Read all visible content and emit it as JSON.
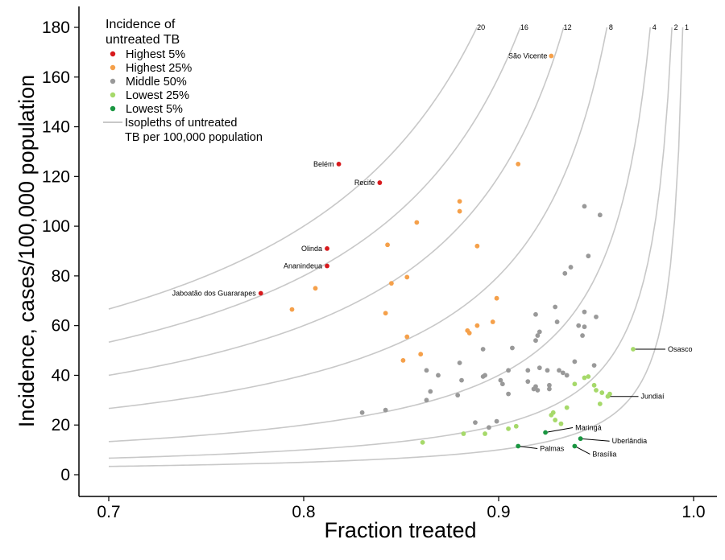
{
  "chart_data": {
    "type": "scatter",
    "title": "",
    "xlabel": "Fraction treated",
    "ylabel": "Incidence, cases/100,000 population",
    "xlim": [
      0.7,
      1.0
    ],
    "ylim": [
      0,
      180
    ],
    "xticks": [
      "0.7",
      "0.8",
      "0.9",
      "1.0"
    ],
    "yticks": [
      "0",
      "20",
      "40",
      "60",
      "80",
      "100",
      "120",
      "140",
      "160",
      "180"
    ],
    "grid": false,
    "legend": {
      "title_line1": "Incidence of",
      "title_line2": "untreated TB",
      "placement": "top-left",
      "items": [
        {
          "label": "Highest 5%",
          "color": "#d7191c"
        },
        {
          "label": "Highest 25%",
          "color": "#f5a04a"
        },
        {
          "label": "Middle 50%",
          "color": "#999999"
        },
        {
          "label": "Lowest 25%",
          "color": "#a6d96a"
        },
        {
          "label": "Lowest 5%",
          "color": "#1a9641"
        }
      ],
      "line_label_1": "Isopleths of untreated",
      "line_label_2": "TB per 100,000 population",
      "line_color": "#c8c8c8"
    },
    "isopleths": [
      20,
      16,
      12,
      8,
      4,
      2,
      1
    ],
    "series": [
      {
        "name": "Highest 5%",
        "color": "#d7191c",
        "points": [
          {
            "x": 0.818,
            "y": 125,
            "label": "Belém"
          },
          {
            "x": 0.839,
            "y": 117.5,
            "label": "Recife"
          },
          {
            "x": 0.812,
            "y": 91,
            "label": "Olinda"
          },
          {
            "x": 0.812,
            "y": 84,
            "label": "Ananindeua"
          },
          {
            "x": 0.778,
            "y": 73,
            "label": "Jaboatão dos Guararapes"
          }
        ]
      },
      {
        "name": "Highest 25%",
        "color": "#f5a04a",
        "points": [
          {
            "x": 0.927,
            "y": 168.5,
            "label": "São Vicente"
          },
          {
            "x": 0.91,
            "y": 125
          },
          {
            "x": 0.88,
            "y": 110
          },
          {
            "x": 0.88,
            "y": 106
          },
          {
            "x": 0.858,
            "y": 101.5
          },
          {
            "x": 0.843,
            "y": 92.5
          },
          {
            "x": 0.889,
            "y": 92
          },
          {
            "x": 0.853,
            "y": 79.5
          },
          {
            "x": 0.845,
            "y": 77
          },
          {
            "x": 0.806,
            "y": 75
          },
          {
            "x": 0.899,
            "y": 71
          },
          {
            "x": 0.794,
            "y": 66.5
          },
          {
            "x": 0.842,
            "y": 65
          },
          {
            "x": 0.897,
            "y": 61.5
          },
          {
            "x": 0.889,
            "y": 60
          },
          {
            "x": 0.884,
            "y": 58
          },
          {
            "x": 0.885,
            "y": 57
          },
          {
            "x": 0.853,
            "y": 55.5
          },
          {
            "x": 0.86,
            "y": 48.5
          },
          {
            "x": 0.851,
            "y": 46
          }
        ]
      },
      {
        "name": "Middle 50%",
        "color": "#999999",
        "points": [
          {
            "x": 0.944,
            "y": 108
          },
          {
            "x": 0.952,
            "y": 104.5
          },
          {
            "x": 0.946,
            "y": 88
          },
          {
            "x": 0.937,
            "y": 83.5
          },
          {
            "x": 0.934,
            "y": 81
          },
          {
            "x": 0.929,
            "y": 67.5
          },
          {
            "x": 0.944,
            "y": 65.5
          },
          {
            "x": 0.919,
            "y": 64.5
          },
          {
            "x": 0.95,
            "y": 63.5
          },
          {
            "x": 0.93,
            "y": 61.5
          },
          {
            "x": 0.941,
            "y": 60
          },
          {
            "x": 0.944,
            "y": 59.5
          },
          {
            "x": 0.921,
            "y": 57.5
          },
          {
            "x": 0.92,
            "y": 56
          },
          {
            "x": 0.943,
            "y": 56
          },
          {
            "x": 0.919,
            "y": 54
          },
          {
            "x": 0.907,
            "y": 51
          },
          {
            "x": 0.892,
            "y": 50.5
          },
          {
            "x": 0.939,
            "y": 45.5
          },
          {
            "x": 0.88,
            "y": 45
          },
          {
            "x": 0.949,
            "y": 44
          },
          {
            "x": 0.921,
            "y": 43
          },
          {
            "x": 0.915,
            "y": 42
          },
          {
            "x": 0.863,
            "y": 42
          },
          {
            "x": 0.905,
            "y": 42
          },
          {
            "x": 0.931,
            "y": 42
          },
          {
            "x": 0.925,
            "y": 42
          },
          {
            "x": 0.933,
            "y": 41
          },
          {
            "x": 0.935,
            "y": 40
          },
          {
            "x": 0.869,
            "y": 40
          },
          {
            "x": 0.893,
            "y": 40
          },
          {
            "x": 0.892,
            "y": 39.5
          },
          {
            "x": 0.901,
            "y": 38
          },
          {
            "x": 0.881,
            "y": 38
          },
          {
            "x": 0.915,
            "y": 37.5
          },
          {
            "x": 0.902,
            "y": 36.5
          },
          {
            "x": 0.926,
            "y": 36
          },
          {
            "x": 0.919,
            "y": 35.5
          },
          {
            "x": 0.918,
            "y": 34.5
          },
          {
            "x": 0.926,
            "y": 34.5
          },
          {
            "x": 0.92,
            "y": 34
          },
          {
            "x": 0.865,
            "y": 33.5
          },
          {
            "x": 0.905,
            "y": 32.5
          },
          {
            "x": 0.879,
            "y": 32
          },
          {
            "x": 0.863,
            "y": 30
          },
          {
            "x": 0.842,
            "y": 26
          },
          {
            "x": 0.83,
            "y": 25
          },
          {
            "x": 0.888,
            "y": 21
          },
          {
            "x": 0.899,
            "y": 21.5
          },
          {
            "x": 0.895,
            "y": 19
          }
        ]
      },
      {
        "name": "Lowest 25%",
        "color": "#a6d96a",
        "points": [
          {
            "x": 0.969,
            "y": 50.5,
            "label": "Osasco"
          },
          {
            "x": 0.946,
            "y": 39.5
          },
          {
            "x": 0.944,
            "y": 39
          },
          {
            "x": 0.939,
            "y": 36.5
          },
          {
            "x": 0.949,
            "y": 36
          },
          {
            "x": 0.95,
            "y": 34
          },
          {
            "x": 0.953,
            "y": 33
          },
          {
            "x": 0.957,
            "y": 32.5
          },
          {
            "x": 0.956,
            "y": 31.5,
            "label": "Jundiaí"
          },
          {
            "x": 0.952,
            "y": 28.5
          },
          {
            "x": 0.935,
            "y": 27
          },
          {
            "x": 0.928,
            "y": 25
          },
          {
            "x": 0.927,
            "y": 24
          },
          {
            "x": 0.929,
            "y": 22
          },
          {
            "x": 0.932,
            "y": 20.5
          },
          {
            "x": 0.909,
            "y": 19.5
          },
          {
            "x": 0.905,
            "y": 18.5
          },
          {
            "x": 0.882,
            "y": 16.5
          },
          {
            "x": 0.893,
            "y": 16.5
          },
          {
            "x": 0.861,
            "y": 13
          }
        ]
      },
      {
        "name": "Lowest 5%",
        "color": "#1a9641",
        "points": [
          {
            "x": 0.924,
            "y": 17,
            "label": "Maringá"
          },
          {
            "x": 0.942,
            "y": 14.5,
            "label": "Uberlândia"
          },
          {
            "x": 0.91,
            "y": 11.5,
            "label": "Palmas"
          },
          {
            "x": 0.939,
            "y": 11.5,
            "label": "Brasília"
          }
        ]
      }
    ]
  }
}
